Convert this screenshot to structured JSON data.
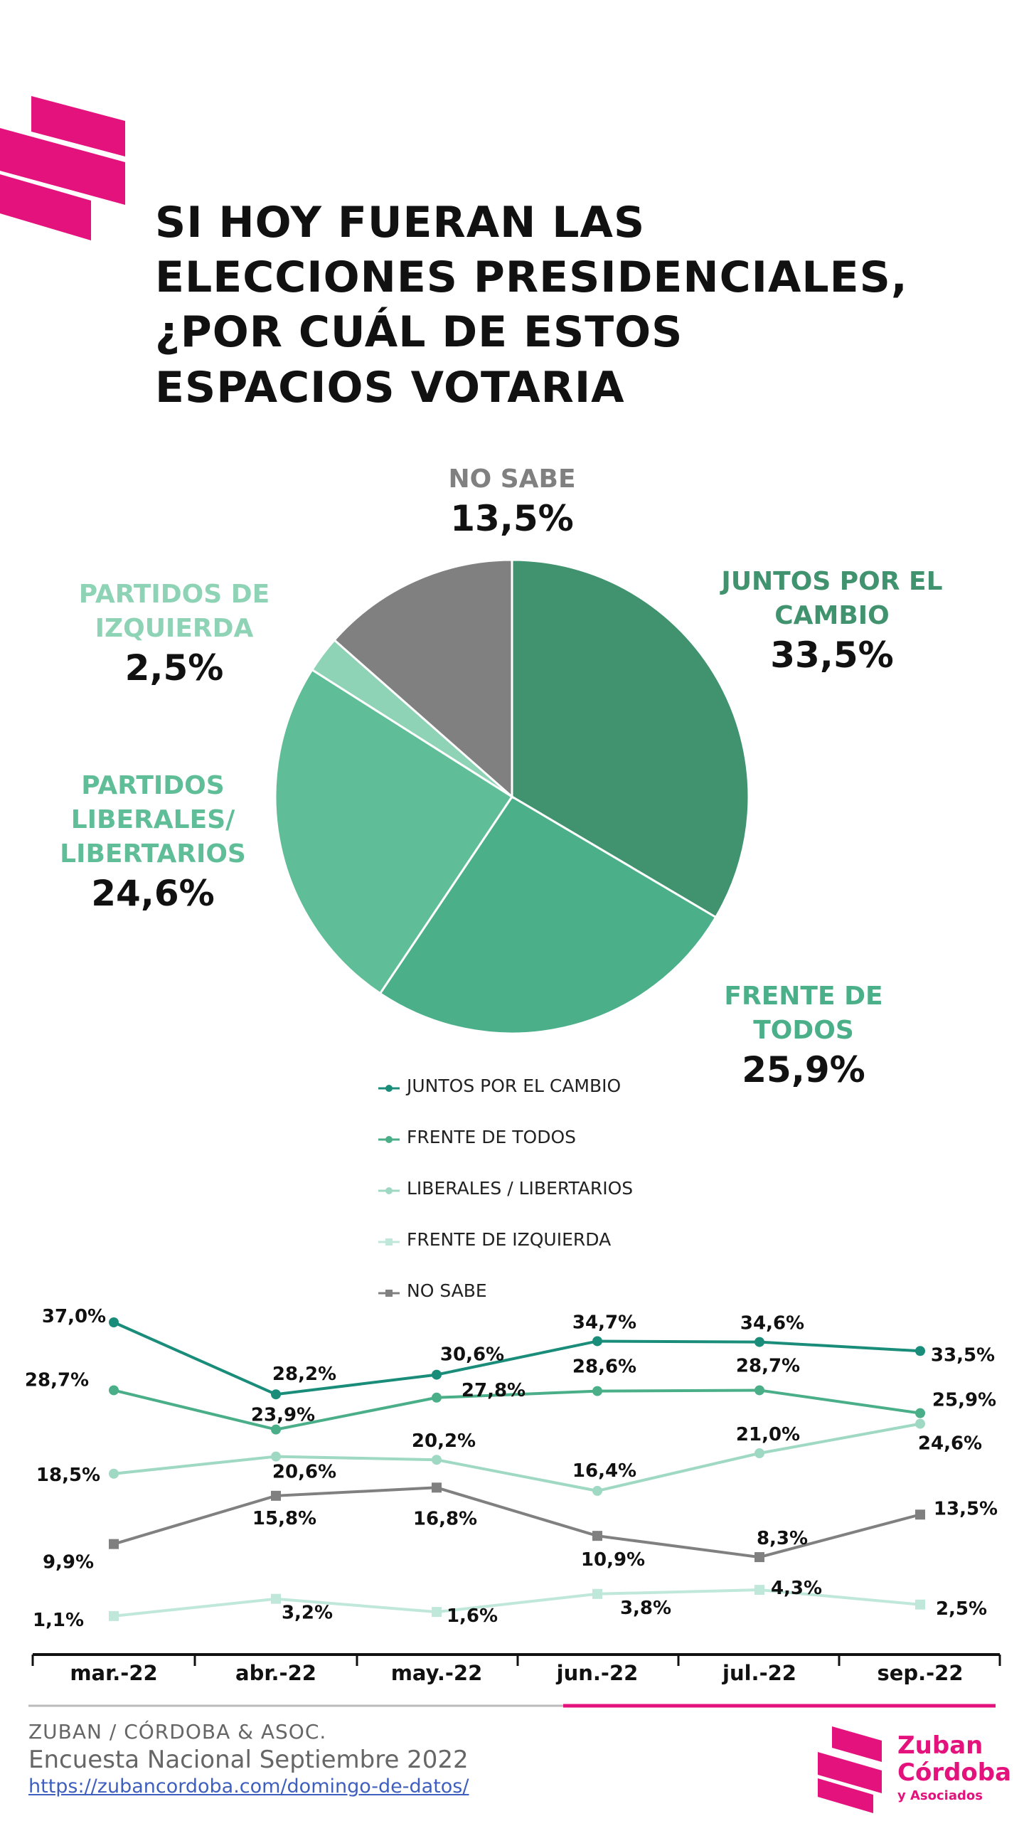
{
  "title_lines": [
    "SI HOY FUERAN LAS",
    "ELECCIONES PRESIDENCIALES,",
    "¿POR CUÁL DE ESTOS",
    "ESPACIOS VOTARIA"
  ],
  "colors": {
    "brand": "#e4127c",
    "juntos": "#40936e",
    "frente": "#4bb08a",
    "liberales": "#5fbe98",
    "izquierda": "#8ed3b5",
    "no_sabe": "#808080",
    "line_juntos": "#1a8d7a",
    "line_frente": "#4aae88",
    "line_liberales": "#9fd9c3",
    "line_izquierda": "#c0e8da",
    "line_no_sabe": "#808080"
  },
  "chart_data": [
    {
      "type": "pie",
      "slices": [
        {
          "name": "JUNTOS POR EL CAMBIO",
          "value": 33.5,
          "label": "33,5%",
          "color": "#40936e"
        },
        {
          "name": "FRENTE DE TODOS",
          "value": 25.9,
          "label": "25,9%",
          "color": "#4bb08a"
        },
        {
          "name": "PARTIDOS LIBERALES/ LIBERTARIOS",
          "value": 24.6,
          "label": "24,6%",
          "color": "#5fbe98"
        },
        {
          "name": "PARTIDOS DE IZQUIERDA",
          "value": 2.5,
          "label": "2,5%",
          "color": "#8ed3b5"
        },
        {
          "name": "NO SABE",
          "value": 13.5,
          "label": "13,5%",
          "color": "#808080"
        }
      ],
      "slice_label_lines": [
        [
          "JUNTOS POR EL",
          "CAMBIO"
        ],
        [
          "FRENTE DE",
          "TODOS"
        ],
        [
          "PARTIDOS",
          "LIBERALES/",
          "LIBERTARIOS"
        ],
        [
          "PARTIDOS DE",
          "IZQUIERDA"
        ],
        [
          "NO SABE"
        ]
      ]
    },
    {
      "type": "line",
      "categories": [
        "mar.-22",
        "abr.-22",
        "may.-22",
        "jun.-22",
        "jul.-22",
        "sep.-22"
      ],
      "series": [
        {
          "name": "JUNTOS POR EL CAMBIO",
          "values": [
            37.0,
            28.2,
            30.6,
            34.7,
            34.6,
            33.5
          ],
          "labels": [
            "37,0%",
            "28,2%",
            "30,6%",
            "34,7%",
            "34,6%",
            "33,5%"
          ],
          "color": "#1a8d7a",
          "marker": "circle"
        },
        {
          "name": "FRENTE DE TODOS",
          "values": [
            28.7,
            23.9,
            27.8,
            28.6,
            28.7,
            25.9
          ],
          "labels": [
            "28,7%",
            "23,9%",
            "27,8%",
            "28,6%",
            "28,7%",
            "25,9%"
          ],
          "color": "#4aae88",
          "marker": "circle"
        },
        {
          "name": "LIBERALES / LIBERTARIOS",
          "values": [
            18.5,
            20.6,
            20.2,
            16.4,
            21.0,
            24.6
          ],
          "labels": [
            "18,5%",
            "20,6%",
            "20,2%",
            "16,4%",
            "21,0%",
            "24,6%"
          ],
          "color": "#9fd9c3",
          "marker": "circle"
        },
        {
          "name": "FRENTE DE IZQUIERDA",
          "values": [
            1.1,
            3.2,
            1.6,
            3.8,
            4.3,
            2.5
          ],
          "labels": [
            "1,1%",
            "3,2%",
            "1,6%",
            "3,8%",
            "4,3%",
            "2,5%"
          ],
          "color": "#c0e8da",
          "marker": "square"
        },
        {
          "name": "NO SABE",
          "values": [
            9.9,
            15.8,
            16.8,
            10.9,
            8.3,
            13.5
          ],
          "labels": [
            "9,9%",
            "15,8%",
            "16,8%",
            "10,9%",
            "8,3%",
            "13,5%"
          ],
          "color": "#808080",
          "marker": "square"
        }
      ]
    }
  ],
  "footer": {
    "line1": "ZUBAN / CÓRDOBA & ASOC.",
    "line2": "Encuesta Nacional Septiembre 2022",
    "link": "https://zubancordoba.com/domingo-de-datos/"
  },
  "brand": {
    "name1": "Zuban",
    "name2": "Córdoba",
    "sub": "y Asociados"
  }
}
